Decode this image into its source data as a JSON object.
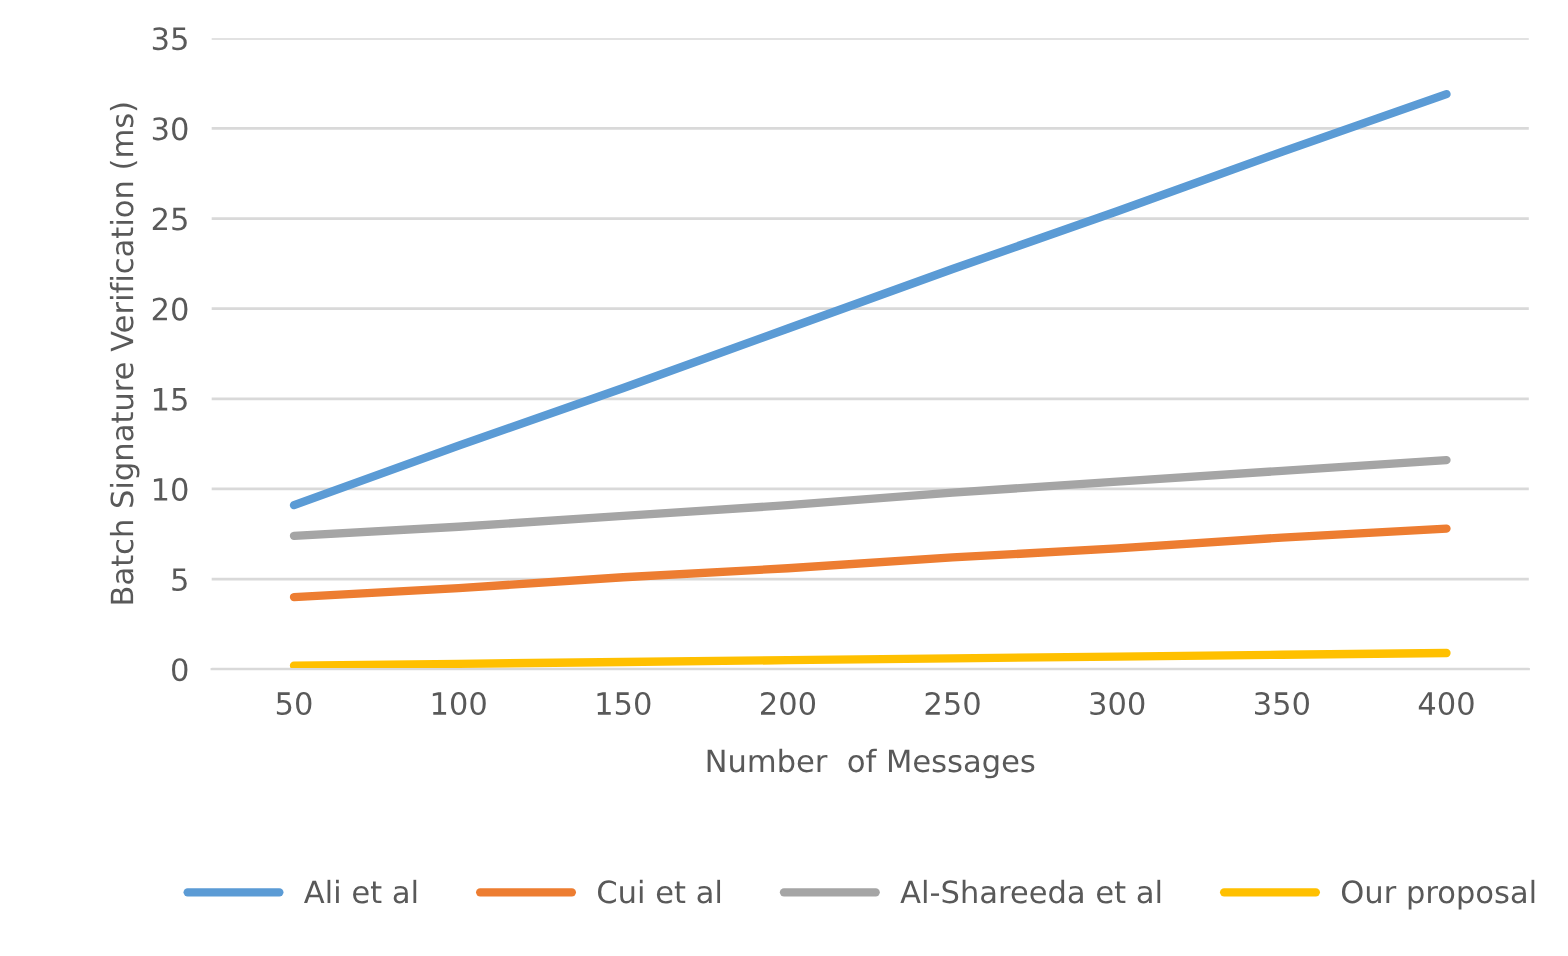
{
  "chart_data": {
    "type": "line",
    "xlabel": "Number  of Messages",
    "ylabel": "Batch Signature Verification (ms)",
    "categories": [
      "50",
      "100",
      "150",
      "200",
      "250",
      "300",
      "350",
      "400"
    ],
    "series": [
      {
        "name": "Ali et al",
        "color": "#5b9bd5",
        "values": [
          9.1,
          12.4,
          15.6,
          18.9,
          22.2,
          25.4,
          28.7,
          31.9
        ]
      },
      {
        "name": "Cui et al",
        "color": "#ed7d31",
        "values": [
          4.0,
          4.5,
          5.1,
          5.6,
          6.2,
          6.7,
          7.3,
          7.8
        ]
      },
      {
        "name": "Al-Shareeda et al",
        "color": "#a5a5a5",
        "values": [
          7.4,
          7.9,
          8.5,
          9.1,
          9.8,
          10.4,
          11.0,
          11.6
        ]
      },
      {
        "name": "Our proposal",
        "color": "#ffc000",
        "values": [
          0.2,
          0.3,
          0.4,
          0.5,
          0.6,
          0.7,
          0.8,
          0.9
        ]
      }
    ],
    "ylim": [
      0,
      35
    ],
    "yticks": [
      0,
      5,
      10,
      15,
      20,
      25,
      30,
      35
    ],
    "grid": "y",
    "legend": "bottom",
    "marker": "none",
    "line_style": "solid"
  }
}
